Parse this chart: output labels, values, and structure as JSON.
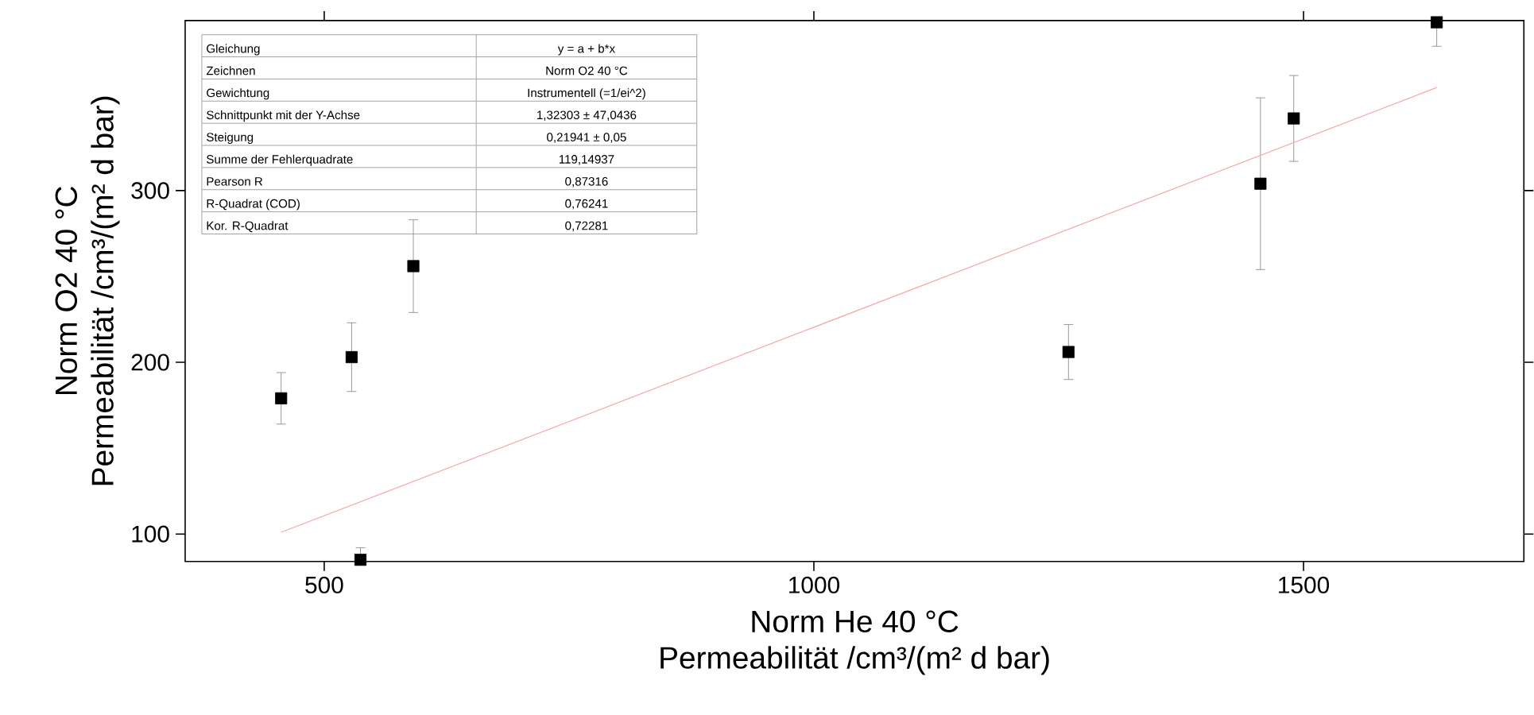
{
  "chart_data": {
    "type": "scatter",
    "xlabel": "Norm He 40 °C\nPermeabilität /cm³/(m² d bar)",
    "ylabel": "Norm O2 40 °C\nPermeabilität /cm³/(m² d bar)",
    "xlim": [
      358,
      1725
    ],
    "ylim": [
      84,
      399
    ],
    "xticks": [
      500,
      1000,
      1500
    ],
    "yticks": [
      100,
      200,
      300
    ],
    "grid": false,
    "annotations": [
      "Gleichung",
      "y = a + b*x",
      "Zeichnen",
      "Norm O2 40 °C",
      "Gewichtung",
      "Instrumentell (=1/ei^2)",
      "Schnittpunkt mit der Y-Achse",
      "1,32303 ± 47,0436",
      "Steigung",
      "0,21941 ± 0,05",
      "Summe der Fehlerquadrate",
      "119,14937",
      "Pearson R",
      "0,87316",
      "R-Quadrat (COD)",
      "0,76241",
      "Kor. R-Quadrat",
      "0,72281"
    ],
    "series": [
      {
        "type": "scatter",
        "color": "#000000",
        "marker": "square",
        "x": [
          456,
          528,
          537,
          591,
          1260,
          1456,
          1490,
          1636
        ],
        "values": [
          179,
          203,
          85,
          256,
          206,
          304,
          342,
          398
        ],
        "errors": [
          15,
          20,
          [
            84,
            92
          ],
          27,
          16,
          50,
          25,
          [
            384,
            399
          ]
        ]
      },
      {
        "type": "line",
        "color": "#f4a6a6",
        "marker": "none",
        "line_style": "solid",
        "x": [
          456,
          1636
        ],
        "values": [
          101,
          360
        ]
      }
    ]
  }
}
